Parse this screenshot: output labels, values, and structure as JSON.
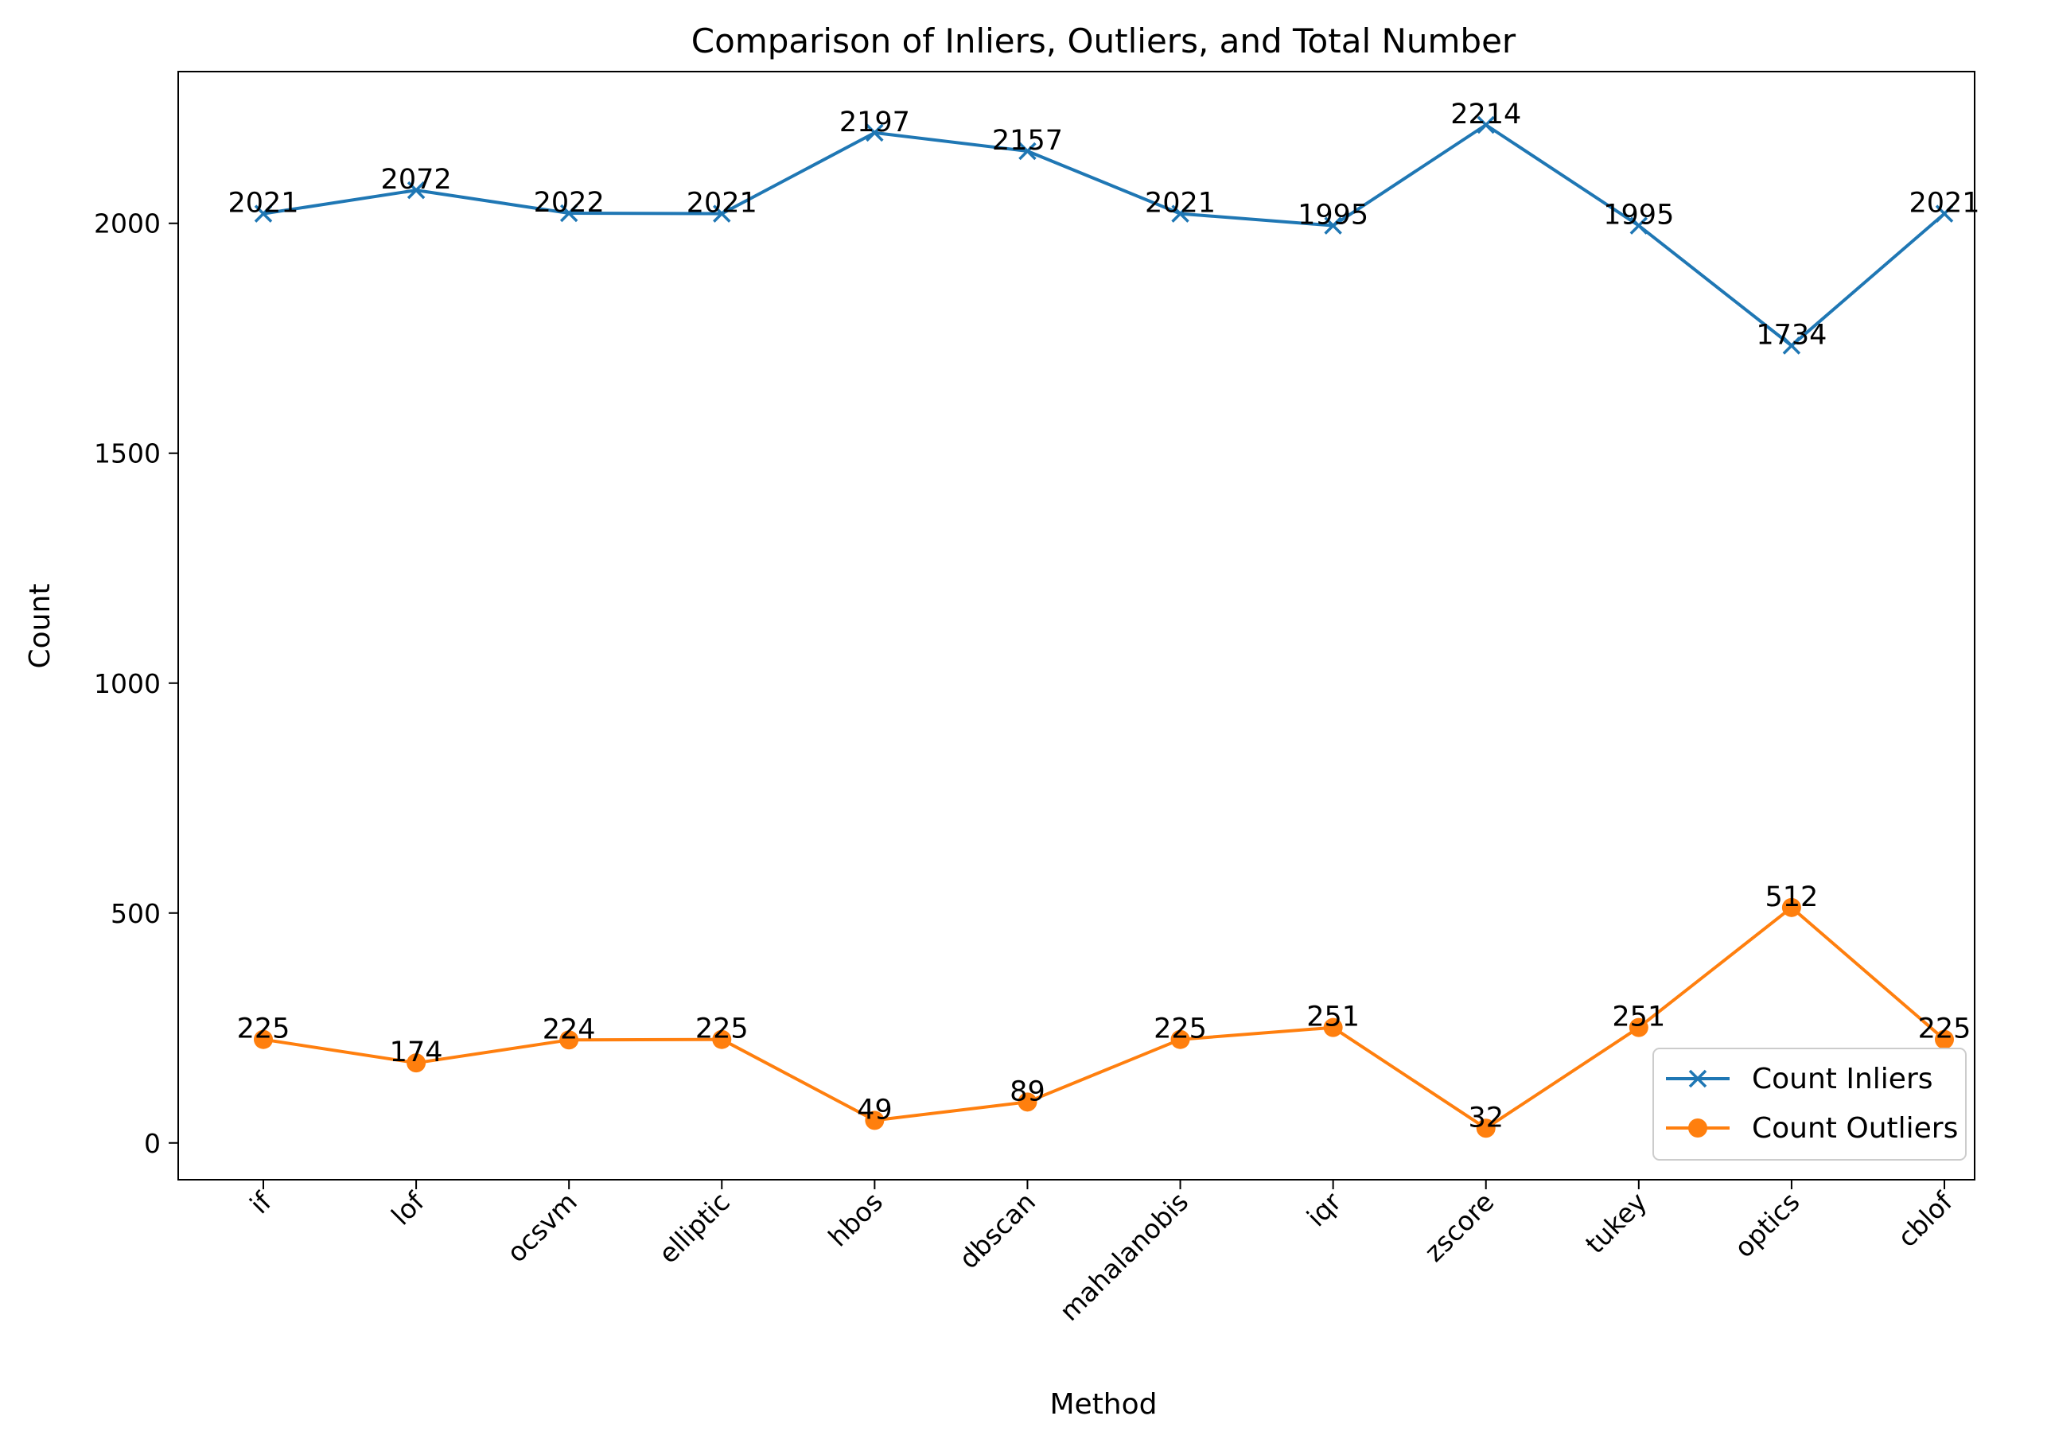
{
  "chart_data": {
    "type": "line",
    "title": "Comparison of Inliers, Outliers, and Total Number",
    "xlabel": "Method",
    "ylabel": "Count",
    "categories": [
      "if",
      "lof",
      "ocsvm",
      "elliptic",
      "hbos",
      "dbscan",
      "mahalanobis",
      "iqr",
      "zscore",
      "tukey",
      "optics",
      "cblof"
    ],
    "ylim": [
      -80,
      2330
    ],
    "yticks": [
      0,
      500,
      1000,
      1500,
      2000
    ],
    "series": [
      {
        "name": "Count Inliers",
        "marker": "x",
        "color": "#1f77b4",
        "values": [
          2021,
          2072,
          2022,
          2021,
          2197,
          2157,
          2021,
          1995,
          2214,
          1995,
          1734,
          2021
        ]
      },
      {
        "name": "Count Outliers",
        "marker": "o",
        "color": "#ff7f0e",
        "values": [
          225,
          174,
          224,
          225,
          49,
          89,
          225,
          251,
          32,
          251,
          512,
          225
        ]
      }
    ],
    "grid": false,
    "legend_position": "lower right"
  }
}
